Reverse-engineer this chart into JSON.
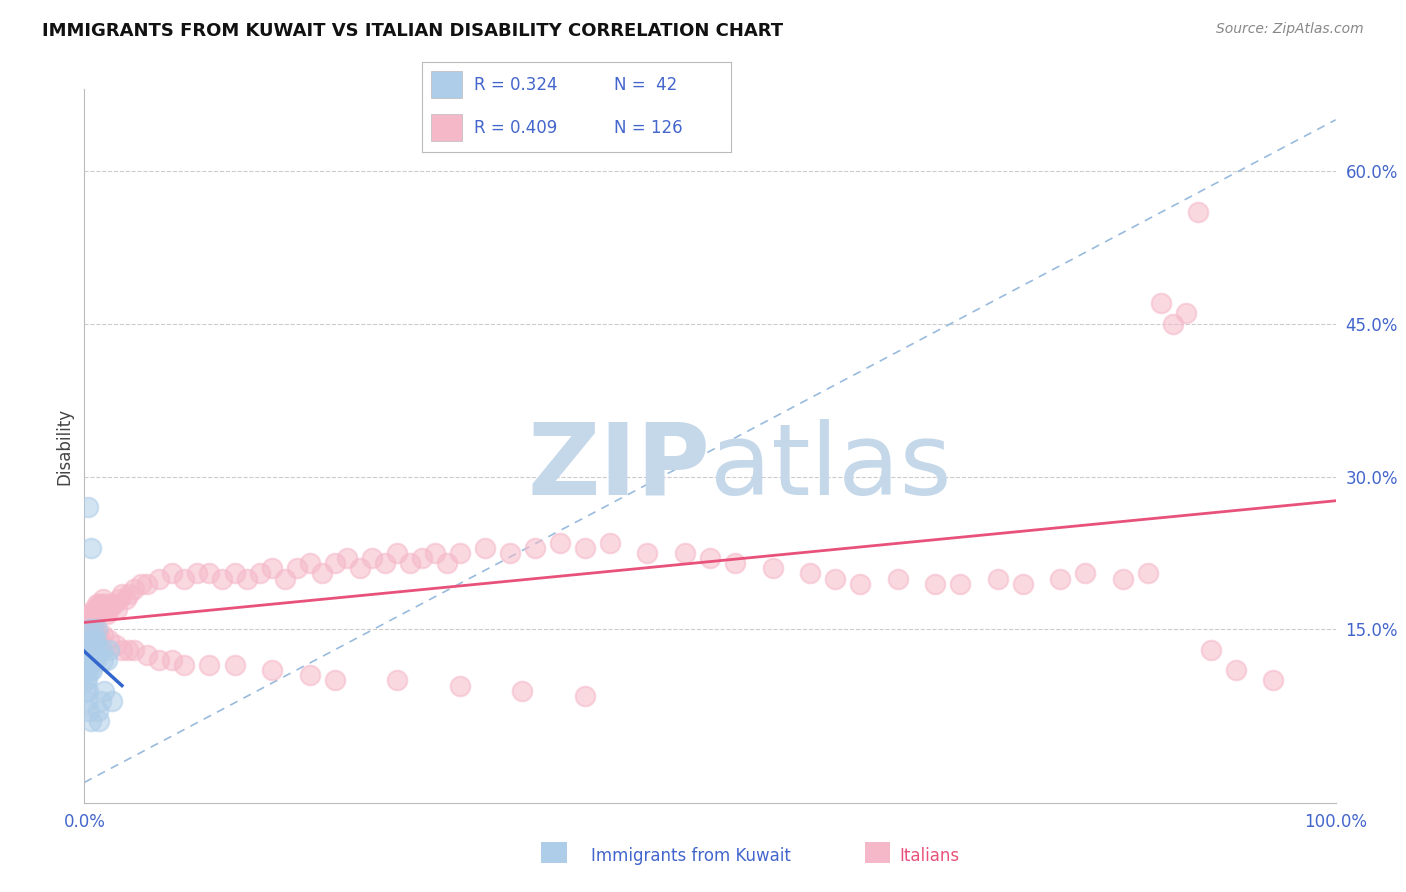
{
  "title": "IMMIGRANTS FROM KUWAIT VS ITALIAN DISABILITY CORRELATION CHART",
  "source_text": "Source: ZipAtlas.com",
  "ylabel": "Disability",
  "xlim": [
    0,
    1.0
  ],
  "ylim": [
    -0.02,
    0.68
  ],
  "yticks": [
    0.0,
    0.15,
    0.3,
    0.45,
    0.6
  ],
  "ytick_labels": [
    "",
    "15.0%",
    "30.0%",
    "45.0%",
    "60.0%"
  ],
  "blue_color": "#aecde8",
  "pink_color": "#f5b8c8",
  "trend_blue": "#3366cc",
  "trend_pink": "#e8527a",
  "diag_color": "#99bbdd",
  "watermark_color": "#c5d8ea",
  "grid_color": "#cccccc",
  "title_color": "#111111",
  "tick_color": "#4466cc",
  "source_color": "#888888",
  "blue_scatter_x": [
    0.001,
    0.001,
    0.001,
    0.002,
    0.002,
    0.002,
    0.002,
    0.003,
    0.003,
    0.003,
    0.003,
    0.004,
    0.004,
    0.004,
    0.004,
    0.005,
    0.005,
    0.005,
    0.005,
    0.006,
    0.006,
    0.006,
    0.007,
    0.007,
    0.007,
    0.008,
    0.008,
    0.009,
    0.009,
    0.01,
    0.01,
    0.011,
    0.012,
    0.013,
    0.014,
    0.015,
    0.016,
    0.018,
    0.02,
    0.022,
    0.003,
    0.005
  ],
  "blue_scatter_y": [
    0.13,
    0.1,
    0.09,
    0.12,
    0.11,
    0.1,
    0.08,
    0.14,
    0.12,
    0.11,
    0.09,
    0.15,
    0.13,
    0.12,
    0.07,
    0.14,
    0.13,
    0.11,
    0.06,
    0.14,
    0.13,
    0.11,
    0.15,
    0.13,
    0.12,
    0.14,
    0.12,
    0.14,
    0.12,
    0.15,
    0.13,
    0.07,
    0.06,
    0.08,
    0.13,
    0.12,
    0.09,
    0.12,
    0.13,
    0.08,
    0.27,
    0.23
  ],
  "pink_scatter_x": [
    0.001,
    0.001,
    0.002,
    0.002,
    0.003,
    0.003,
    0.003,
    0.004,
    0.004,
    0.004,
    0.005,
    0.005,
    0.005,
    0.006,
    0.006,
    0.007,
    0.007,
    0.008,
    0.008,
    0.009,
    0.009,
    0.01,
    0.01,
    0.011,
    0.012,
    0.013,
    0.014,
    0.015,
    0.016,
    0.017,
    0.018,
    0.019,
    0.02,
    0.022,
    0.024,
    0.026,
    0.028,
    0.03,
    0.033,
    0.036,
    0.04,
    0.045,
    0.05,
    0.06,
    0.07,
    0.08,
    0.09,
    0.1,
    0.11,
    0.12,
    0.13,
    0.14,
    0.15,
    0.16,
    0.17,
    0.18,
    0.19,
    0.2,
    0.21,
    0.22,
    0.23,
    0.24,
    0.25,
    0.26,
    0.27,
    0.28,
    0.29,
    0.3,
    0.32,
    0.34,
    0.36,
    0.38,
    0.4,
    0.42,
    0.45,
    0.48,
    0.5,
    0.52,
    0.55,
    0.58,
    0.6,
    0.62,
    0.65,
    0.68,
    0.7,
    0.73,
    0.75,
    0.78,
    0.8,
    0.83,
    0.85,
    0.86,
    0.87,
    0.88,
    0.89,
    0.9,
    0.92,
    0.95,
    0.002,
    0.003,
    0.004,
    0.005,
    0.006,
    0.007,
    0.008,
    0.01,
    0.012,
    0.015,
    0.02,
    0.025,
    0.03,
    0.035,
    0.04,
    0.05,
    0.06,
    0.07,
    0.08,
    0.1,
    0.12,
    0.15,
    0.18,
    0.2,
    0.25,
    0.3,
    0.35,
    0.4
  ],
  "pink_scatter_y": [
    0.155,
    0.145,
    0.155,
    0.145,
    0.165,
    0.155,
    0.135,
    0.155,
    0.145,
    0.135,
    0.16,
    0.15,
    0.14,
    0.165,
    0.155,
    0.165,
    0.145,
    0.17,
    0.155,
    0.165,
    0.145,
    0.175,
    0.165,
    0.17,
    0.175,
    0.17,
    0.175,
    0.18,
    0.175,
    0.17,
    0.165,
    0.175,
    0.17,
    0.175,
    0.175,
    0.17,
    0.18,
    0.185,
    0.18,
    0.185,
    0.19,
    0.195,
    0.195,
    0.2,
    0.205,
    0.2,
    0.205,
    0.205,
    0.2,
    0.205,
    0.2,
    0.205,
    0.21,
    0.2,
    0.21,
    0.215,
    0.205,
    0.215,
    0.22,
    0.21,
    0.22,
    0.215,
    0.225,
    0.215,
    0.22,
    0.225,
    0.215,
    0.225,
    0.23,
    0.225,
    0.23,
    0.235,
    0.23,
    0.235,
    0.225,
    0.225,
    0.22,
    0.215,
    0.21,
    0.205,
    0.2,
    0.195,
    0.2,
    0.195,
    0.195,
    0.2,
    0.195,
    0.2,
    0.205,
    0.2,
    0.205,
    0.47,
    0.45,
    0.46,
    0.56,
    0.13,
    0.11,
    0.1,
    0.145,
    0.14,
    0.14,
    0.145,
    0.145,
    0.14,
    0.145,
    0.145,
    0.145,
    0.145,
    0.14,
    0.135,
    0.13,
    0.13,
    0.13,
    0.125,
    0.12,
    0.12,
    0.115,
    0.115,
    0.115,
    0.11,
    0.105,
    0.1,
    0.1,
    0.095,
    0.09,
    0.085
  ]
}
